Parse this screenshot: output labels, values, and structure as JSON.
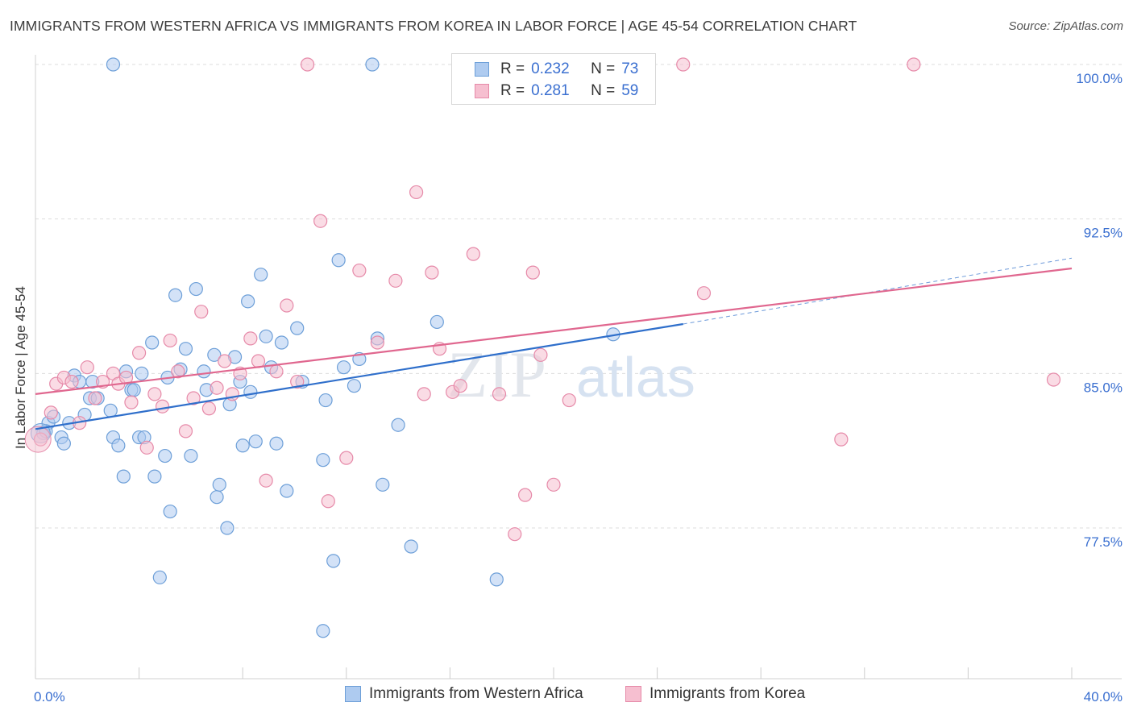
{
  "title": "IMMIGRANTS FROM WESTERN AFRICA VS IMMIGRANTS FROM KOREA IN LABOR FORCE | AGE 45-54 CORRELATION CHART",
  "source": "Source: ZipAtlas.com",
  "watermark": "ZIPatlas",
  "colors": {
    "blue_fill": "#aecbf0",
    "blue_stroke": "#6d9fd8",
    "blue_line": "#2f6fcb",
    "pink_fill": "#f6bfd0",
    "pink_stroke": "#e68aa9",
    "pink_line": "#e0678f",
    "grid": "#dddddd",
    "tick_label": "#3a6fd0"
  },
  "legend_top": {
    "rows": [
      {
        "r_label": "R =",
        "r_value": "0.232",
        "n_label": "N =",
        "n_value": "73"
      },
      {
        "r_label": "R =",
        "r_value": "0.281",
        "n_label": "N =",
        "n_value": "59"
      }
    ]
  },
  "legend_bottom": [
    "Immigrants from Western Africa",
    "Immigrants from Korea"
  ],
  "chart_data": {
    "type": "scatter",
    "xlabel": "",
    "ylabel": "In Labor Force | Age 45-54",
    "xlim": [
      0,
      40
    ],
    "ylim": [
      71,
      100.5
    ],
    "x_tick_labels": [
      "0.0%",
      "40.0%"
    ],
    "y_ticks": [
      77.5,
      85.0,
      92.5,
      100.0
    ],
    "y_tick_labels": [
      "77.5%",
      "85.0%",
      "92.5%",
      "100.0%"
    ],
    "grid": true,
    "legend": "top-center",
    "series": [
      {
        "name": "Immigrants from Western Africa",
        "r": 0.232,
        "n": 73,
        "trend": {
          "x0": 0,
          "y0": 82.3,
          "x1": 25,
          "y1": 87.4,
          "dashed_to_x": 40,
          "dashed_to_y": 90.6
        },
        "points": [
          [
            0.3,
            82.1
          ],
          [
            0.5,
            82.6
          ],
          [
            0.7,
            82.9
          ],
          [
            1.0,
            81.9
          ],
          [
            1.1,
            81.6
          ],
          [
            1.3,
            82.6
          ],
          [
            1.5,
            84.9
          ],
          [
            1.7,
            84.6
          ],
          [
            1.9,
            83.0
          ],
          [
            2.1,
            83.8
          ],
          [
            2.2,
            84.6
          ],
          [
            2.4,
            83.8
          ],
          [
            2.9,
            83.2
          ],
          [
            3.0,
            81.9
          ],
          [
            3.2,
            81.5
          ],
          [
            3.4,
            80.0
          ],
          [
            3.5,
            85.1
          ],
          [
            3.7,
            84.2
          ],
          [
            3.8,
            84.2
          ],
          [
            4.0,
            81.9
          ],
          [
            4.1,
            85.0
          ],
          [
            4.2,
            81.9
          ],
          [
            4.5,
            86.5
          ],
          [
            4.6,
            80.0
          ],
          [
            4.8,
            75.1
          ],
          [
            5.0,
            81.0
          ],
          [
            5.1,
            84.8
          ],
          [
            5.2,
            78.3
          ],
          [
            5.4,
            88.8
          ],
          [
            5.6,
            85.2
          ],
          [
            5.8,
            86.2
          ],
          [
            6.0,
            81.0
          ],
          [
            6.2,
            89.1
          ],
          [
            6.5,
            85.1
          ],
          [
            6.6,
            84.2
          ],
          [
            6.9,
            85.9
          ],
          [
            7.0,
            79.0
          ],
          [
            7.1,
            79.6
          ],
          [
            7.4,
            77.5
          ],
          [
            7.5,
            83.5
          ],
          [
            7.7,
            85.8
          ],
          [
            7.9,
            84.6
          ],
          [
            8.0,
            81.5
          ],
          [
            8.2,
            88.5
          ],
          [
            8.3,
            84.1
          ],
          [
            8.5,
            81.7
          ],
          [
            8.7,
            89.8
          ],
          [
            8.9,
            86.8
          ],
          [
            9.1,
            85.3
          ],
          [
            9.3,
            81.6
          ],
          [
            9.5,
            86.5
          ],
          [
            9.7,
            79.3
          ],
          [
            10.1,
            87.2
          ],
          [
            10.3,
            84.6
          ],
          [
            11.1,
            80.8
          ],
          [
            11.2,
            83.7
          ],
          [
            11.5,
            75.9
          ],
          [
            11.7,
            90.5
          ],
          [
            11.9,
            85.3
          ],
          [
            12.3,
            84.4
          ],
          [
            12.5,
            85.7
          ],
          [
            13.0,
            100.0
          ],
          [
            13.2,
            86.7
          ],
          [
            13.4,
            79.6
          ],
          [
            14.0,
            82.5
          ],
          [
            14.5,
            76.6
          ],
          [
            15.5,
            87.5
          ],
          [
            16.6,
            100.0
          ],
          [
            17.8,
            75.0
          ],
          [
            22.3,
            86.9
          ],
          [
            11.1,
            72.5
          ],
          [
            3.0,
            100.0
          ],
          [
            0.4,
            82.2
          ]
        ]
      },
      {
        "name": "Immigrants from Korea",
        "r": 0.281,
        "n": 59,
        "trend": {
          "x0": 0,
          "y0": 84.0,
          "x1": 40,
          "y1": 90.1
        },
        "points": [
          [
            0.2,
            81.8
          ],
          [
            0.6,
            83.1
          ],
          [
            0.8,
            84.5
          ],
          [
            1.1,
            84.8
          ],
          [
            1.4,
            84.6
          ],
          [
            1.7,
            82.6
          ],
          [
            2.0,
            85.3
          ],
          [
            2.3,
            83.8
          ],
          [
            2.6,
            84.6
          ],
          [
            3.0,
            85.0
          ],
          [
            3.2,
            84.5
          ],
          [
            3.5,
            84.8
          ],
          [
            3.7,
            83.6
          ],
          [
            4.0,
            86.0
          ],
          [
            4.3,
            81.4
          ],
          [
            4.6,
            84.0
          ],
          [
            4.9,
            83.4
          ],
          [
            5.2,
            86.6
          ],
          [
            5.5,
            85.1
          ],
          [
            5.8,
            82.2
          ],
          [
            6.1,
            83.8
          ],
          [
            6.4,
            88.0
          ],
          [
            6.7,
            83.3
          ],
          [
            7.0,
            84.3
          ],
          [
            7.3,
            85.6
          ],
          [
            7.6,
            84.0
          ],
          [
            7.9,
            85.0
          ],
          [
            8.3,
            86.7
          ],
          [
            8.6,
            85.6
          ],
          [
            8.9,
            79.8
          ],
          [
            9.3,
            85.1
          ],
          [
            9.7,
            88.3
          ],
          [
            10.1,
            84.6
          ],
          [
            10.5,
            100.0
          ],
          [
            11.0,
            92.4
          ],
          [
            11.3,
            78.8
          ],
          [
            12.0,
            80.9
          ],
          [
            12.5,
            90.0
          ],
          [
            13.2,
            86.5
          ],
          [
            13.9,
            89.5
          ],
          [
            14.7,
            93.8
          ],
          [
            15.0,
            84.0
          ],
          [
            15.6,
            86.2
          ],
          [
            16.1,
            84.1
          ],
          [
            16.4,
            84.4
          ],
          [
            16.9,
            90.8
          ],
          [
            17.9,
            84.0
          ],
          [
            18.5,
            77.2
          ],
          [
            18.9,
            79.1
          ],
          [
            19.2,
            89.9
          ],
          [
            19.5,
            85.9
          ],
          [
            20.0,
            79.6
          ],
          [
            20.6,
            83.7
          ],
          [
            25.0,
            100.0
          ],
          [
            25.8,
            88.9
          ],
          [
            31.1,
            81.8
          ],
          [
            33.9,
            100.0
          ],
          [
            39.3,
            84.7
          ],
          [
            15.3,
            89.9
          ]
        ]
      }
    ]
  }
}
